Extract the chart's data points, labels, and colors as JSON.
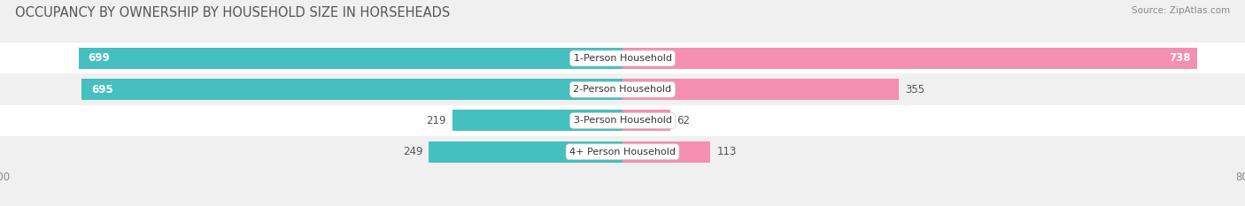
{
  "title": "OCCUPANCY BY OWNERSHIP BY HOUSEHOLD SIZE IN HORSEHEADS",
  "source": "Source: ZipAtlas.com",
  "categories": [
    "1-Person Household",
    "2-Person Household",
    "3-Person Household",
    "4+ Person Household"
  ],
  "owner_values": [
    699,
    695,
    219,
    249
  ],
  "renter_values": [
    738,
    355,
    62,
    113
  ],
  "owner_color": "#45BFBF",
  "renter_color": "#F48FB1",
  "axis_max": 800,
  "axis_min": -800,
  "background_color": "#f0f0f0",
  "row_colors": [
    "#ffffff",
    "#f0f0f0",
    "#ffffff",
    "#f0f0f0"
  ],
  "label_fontsize": 8.5,
  "title_fontsize": 10.5,
  "source_fontsize": 7.5,
  "legend_fontsize": 9
}
